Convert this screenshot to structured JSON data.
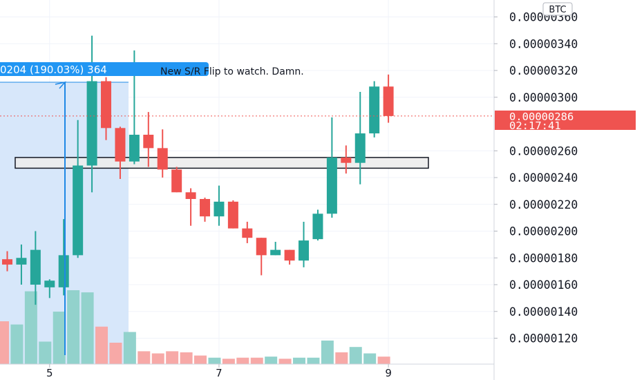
{
  "currency": "BTC",
  "colors": {
    "up": "#26a69a",
    "down": "#ef5350",
    "up_volume": "#92d2cc",
    "down_volume": "#f7a9a7",
    "grid": "#f0f3fa",
    "measure_fill": "#d5e6fa",
    "measure_line": "#1e88e5",
    "measure_label_bg": "#2196f3",
    "price_line": "#ef5350",
    "sr_box_fill": "#ececec",
    "sr_box_border": "#131722"
  },
  "measure_label": "0204 (190.03%) 364",
  "annotation": "New S/R Flip to watch. Damn.",
  "current_price": "0.00000286",
  "countdown": "02:17:41",
  "chart_data": {
    "type": "candlestick",
    "ylim": [
      1.1e-06,
      3.7e-06
    ],
    "y_ticks": [
      "0.00000360",
      "0.00000340",
      "0.00000320",
      "0.00000300",
      "0.00000260",
      "0.00000240",
      "0.00000220",
      "0.00000200",
      "0.00000180",
      "0.00000160",
      "0.00000140",
      "0.00000120"
    ],
    "y_tick_values": [
      3.6e-06,
      3.4e-06,
      3.2e-06,
      3e-06,
      2.6e-06,
      2.4e-06,
      2.2e-06,
      2e-06,
      1.8e-06,
      1.6e-06,
      1.4e-06,
      1.2e-06
    ],
    "x_ticks": [
      {
        "label": "5",
        "index": 3
      },
      {
        "label": "7",
        "index": 15
      },
      {
        "label": "9",
        "index": 27
      }
    ],
    "current_price_value": 2.86e-06,
    "sr_zone": [
      2.47e-06,
      2.55e-06
    ],
    "candles": [
      {
        "o": 1.79,
        "h": 1.85,
        "l": 1.7,
        "c": 1.75,
        "v": 40
      },
      {
        "o": 1.75,
        "h": 1.9,
        "l": 1.6,
        "c": 1.8,
        "v": 37
      },
      {
        "o": 1.6,
        "h": 2.0,
        "l": 1.45,
        "c": 1.86,
        "v": 68
      },
      {
        "o": 1.58,
        "h": 1.64,
        "l": 1.5,
        "c": 1.63,
        "v": 21
      },
      {
        "o": 1.58,
        "h": 2.09,
        "l": 1.52,
        "c": 1.82,
        "v": 49
      },
      {
        "o": 1.82,
        "h": 2.83,
        "l": 1.8,
        "c": 2.49,
        "v": 69
      },
      {
        "o": 2.49,
        "h": 3.46,
        "l": 2.29,
        "c": 3.12,
        "v": 67
      },
      {
        "o": 3.12,
        "h": 3.15,
        "l": 2.68,
        "c": 2.77,
        "v": 35
      },
      {
        "o": 2.77,
        "h": 2.78,
        "l": 2.39,
        "c": 2.52,
        "v": 20
      },
      {
        "o": 2.52,
        "h": 3.35,
        "l": 2.5,
        "c": 2.72,
        "v": 30
      },
      {
        "o": 2.72,
        "h": 2.89,
        "l": 2.48,
        "c": 2.62,
        "v": 12
      },
      {
        "o": 2.62,
        "h": 2.76,
        "l": 2.4,
        "c": 2.46,
        "v": 10
      },
      {
        "o": 2.46,
        "h": 2.48,
        "l": 2.29,
        "c": 2.29,
        "v": 12
      },
      {
        "o": 2.29,
        "h": 2.32,
        "l": 2.04,
        "c": 2.24,
        "v": 11
      },
      {
        "o": 2.24,
        "h": 2.25,
        "l": 2.07,
        "c": 2.11,
        "v": 8
      },
      {
        "o": 2.11,
        "h": 2.34,
        "l": 2.04,
        "c": 2.22,
        "v": 6
      },
      {
        "o": 2.22,
        "h": 2.23,
        "l": 2.02,
        "c": 2.02,
        "v": 5
      },
      {
        "o": 2.02,
        "h": 2.07,
        "l": 1.91,
        "c": 1.95,
        "v": 6
      },
      {
        "o": 1.95,
        "h": 1.95,
        "l": 1.67,
        "c": 1.82,
        "v": 6
      },
      {
        "o": 1.82,
        "h": 1.92,
        "l": 1.82,
        "c": 1.86,
        "v": 7
      },
      {
        "o": 1.86,
        "h": 1.86,
        "l": 1.75,
        "c": 1.78,
        "v": 5
      },
      {
        "o": 1.78,
        "h": 2.07,
        "l": 1.73,
        "c": 1.93,
        "v": 6
      },
      {
        "o": 1.94,
        "h": 2.16,
        "l": 1.93,
        "c": 2.13,
        "v": 6
      },
      {
        "o": 2.13,
        "h": 2.85,
        "l": 2.1,
        "c": 2.55,
        "v": 22
      },
      {
        "o": 2.55,
        "h": 2.64,
        "l": 2.43,
        "c": 2.51,
        "v": 11
      },
      {
        "o": 2.51,
        "h": 3.04,
        "l": 2.35,
        "c": 2.73,
        "v": 16
      },
      {
        "o": 2.73,
        "h": 3.12,
        "l": 2.7,
        "c": 3.08,
        "v": 10
      },
      {
        "o": 3.08,
        "h": 3.17,
        "l": 2.81,
        "c": 2.86,
        "v": 7
      }
    ]
  }
}
